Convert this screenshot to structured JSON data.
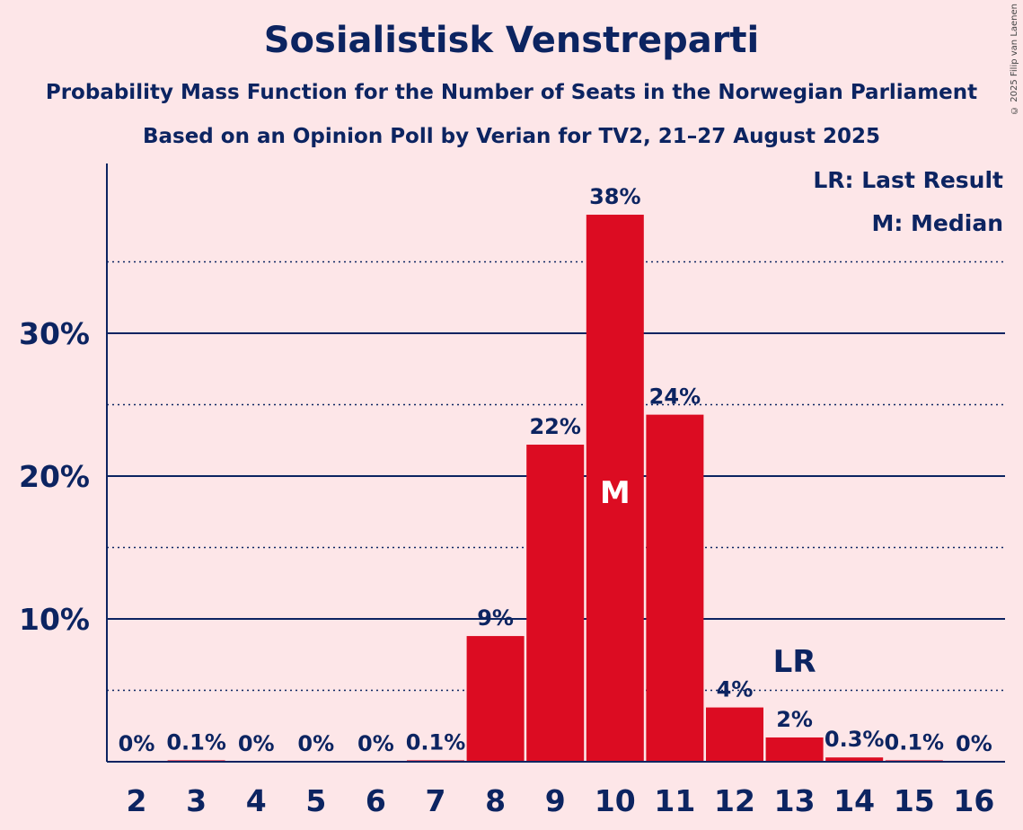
{
  "title": "Sosialistisk Venstreparti",
  "subtitle1": "Probability Mass Function for the Number of Seats in the Norwegian Parliament",
  "subtitle2": "Based on an Opinion Poll by Verian for TV2, 21–27 August 2025",
  "copyright": "© 2025 Filip van Laenen",
  "legend": {
    "lr": "LR: Last Result",
    "m": "M: Median"
  },
  "colors": {
    "bar": "#dc0c22",
    "axis": "#0c2461",
    "background": "#fde6e8"
  },
  "chart_data": {
    "type": "bar",
    "categories": [
      "2",
      "3",
      "4",
      "5",
      "6",
      "7",
      "8",
      "9",
      "10",
      "11",
      "12",
      "13",
      "14",
      "15",
      "16"
    ],
    "values": [
      0,
      0.1,
      0,
      0,
      0,
      0.1,
      8.8,
      22.2,
      38.3,
      24.3,
      3.8,
      1.7,
      0.3,
      0.1,
      0
    ],
    "labels": [
      "0%",
      "0.1%",
      "0%",
      "0%",
      "0%",
      "0.1%",
      "9%",
      "22%",
      "38%",
      "24%",
      "4%",
      "2%",
      "0.3%",
      "0.1%",
      "0%"
    ],
    "yticks": [
      10,
      20,
      30
    ],
    "ytick_labels": [
      "10%",
      "20%",
      "30%"
    ],
    "ylim": [
      0,
      41.6
    ],
    "median_seat": "10",
    "median_marker": "M",
    "last_result_seat": "13",
    "last_result_marker": "LR",
    "grid": true,
    "legend_position": "top-right"
  }
}
